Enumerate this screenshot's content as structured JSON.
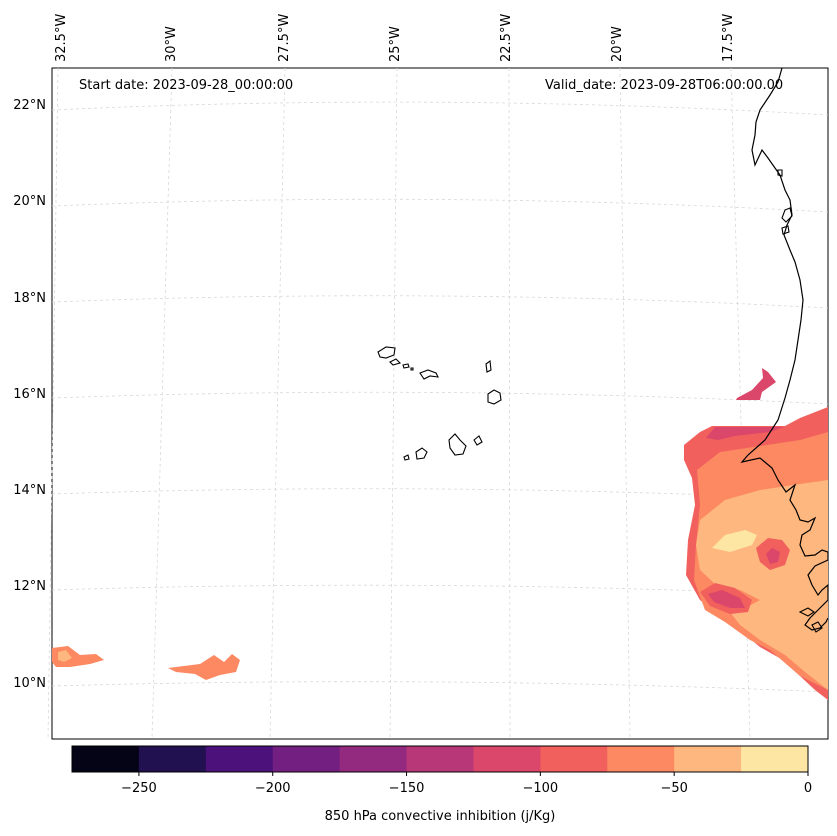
{
  "map": {
    "start_date": "Start date: 2023-09-28_00:00:00",
    "valid_date": "Valid_date: 2023-09-28T06:00:00.00",
    "lon_labels": [
      "32.5°W",
      "30°W",
      "27.5°W",
      "25°W",
      "22.5°W",
      "20°W",
      "17.5°W"
    ],
    "lat_labels": [
      "22°N",
      "20°N",
      "18°N",
      "16°N",
      "14°N",
      "12°N",
      "10°N"
    ],
    "variable": "850 hPa convective inhibition",
    "units": "j/Kg",
    "region": "Cape Verde Islands and West African coast"
  },
  "colorbar": {
    "title": "850 hPa convective inhibition (j/Kg)",
    "tick_labels": [
      "−250",
      "−200",
      "−150",
      "−100",
      "−50",
      "0"
    ],
    "levels": [
      -275,
      -250,
      -225,
      -200,
      -175,
      -150,
      -125,
      -100,
      -75,
      -50,
      -25,
      0
    ],
    "colors": [
      "#050417",
      "#221150",
      "#4d117b",
      "#721f81",
      "#932a80",
      "#b73779",
      "#db476a",
      "#f1605d",
      "#fc8961",
      "#feb77e",
      "#fde6a4"
    ]
  }
}
